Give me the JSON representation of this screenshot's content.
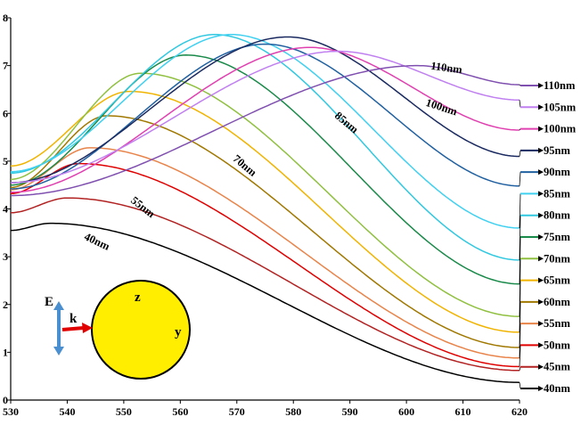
{
  "chart_data": {
    "type": "line",
    "title": "",
    "xlabel": "",
    "ylabel": "",
    "xlim": [
      530,
      620
    ],
    "ylim": [
      0,
      8
    ],
    "x_ticks": [
      "530",
      "540",
      "550",
      "560",
      "570",
      "580",
      "590",
      "600",
      "610",
      "620"
    ],
    "y_ticks": [
      "0",
      "1",
      "2",
      "3",
      "4",
      "5",
      "6",
      "7",
      "8"
    ],
    "grid": false,
    "legend_position": "right",
    "series": [
      {
        "name": "40nm",
        "color": "#000000",
        "peak_x": 537,
        "peak_y": 3.7,
        "start_y": 3.55,
        "end_y": 0.37
      },
      {
        "name": "45nm",
        "color": "#b22222",
        "peak_x": 540,
        "peak_y": 4.23,
        "start_y": 3.92,
        "end_y": 0.62
      },
      {
        "name": "50nm",
        "color": "#e00000",
        "peak_x": 542,
        "peak_y": 4.95,
        "start_y": 4.32,
        "end_y": 0.7
      },
      {
        "name": "55nm",
        "color": "#e8844a",
        "peak_x": 544,
        "peak_y": 5.28,
        "start_y": 4.4,
        "end_y": 0.88
      },
      {
        "name": "60nm",
        "color": "#a07800",
        "peak_x": 547,
        "peak_y": 5.95,
        "start_y": 4.45,
        "end_y": 1.1
      },
      {
        "name": "65nm",
        "color": "#f0b400",
        "peak_x": 551,
        "peak_y": 6.46,
        "start_y": 4.9,
        "end_y": 1.42
      },
      {
        "name": "70nm",
        "color": "#90c040",
        "peak_x": 553,
        "peak_y": 6.84,
        "start_y": 4.62,
        "end_y": 1.75
      },
      {
        "name": "75nm",
        "color": "#1a8a4a",
        "peak_x": 561,
        "peak_y": 7.22,
        "start_y": 4.5,
        "end_y": 2.43
      },
      {
        "name": "80nm",
        "color": "#30c8e0",
        "peak_x": 566,
        "peak_y": 7.65,
        "start_y": 4.75,
        "end_y": 2.93
      },
      {
        "name": "85nm",
        "color": "#40d0f0",
        "peak_x": 569,
        "peak_y": 7.65,
        "start_y": 4.78,
        "end_y": 3.6
      },
      {
        "name": "90nm",
        "color": "#2060a0",
        "peak_x": 575,
        "peak_y": 7.45,
        "start_y": 4.42,
        "end_y": 4.48
      },
      {
        "name": "95nm",
        "color": "#1a2a60",
        "peak_x": 579,
        "peak_y": 7.6,
        "start_y": 4.55,
        "end_y": 5.1
      },
      {
        "name": "100nm",
        "color": "#e040b0",
        "peak_x": 583,
        "peak_y": 7.38,
        "start_y": 4.35,
        "end_y": 5.65
      },
      {
        "name": "105nm",
        "color": "#c080f0",
        "peak_x": 588,
        "peak_y": 7.3,
        "start_y": 4.55,
        "end_y": 6.28
      },
      {
        "name": "110nm",
        "color": "#8050b0",
        "peak_x": 602,
        "peak_y": 7.0,
        "start_y": 4.28,
        "end_y": 6.6
      }
    ],
    "annotations": [
      {
        "text": "110nm",
        "x": 607,
        "y": 6.88,
        "angle": 8
      },
      {
        "text": "100nm",
        "x": 606,
        "y": 6.06,
        "angle": 18
      },
      {
        "text": "85nm",
        "x": 589,
        "y": 5.75,
        "angle": 40
      },
      {
        "text": "70nm",
        "x": 571,
        "y": 4.85,
        "angle": 40
      },
      {
        "text": "55nm",
        "x": 553,
        "y": 3.98,
        "angle": 38
      },
      {
        "text": "40nm",
        "x": 545,
        "y": 3.25,
        "angle": 25
      }
    ]
  },
  "inset": {
    "e_label": "E",
    "k_label": "k",
    "z_label": "z",
    "y_label": "y",
    "sphere_color": "#ffee00",
    "e_arrow_color": "#4a8fd0",
    "k_arrow_color": "#e00000"
  }
}
